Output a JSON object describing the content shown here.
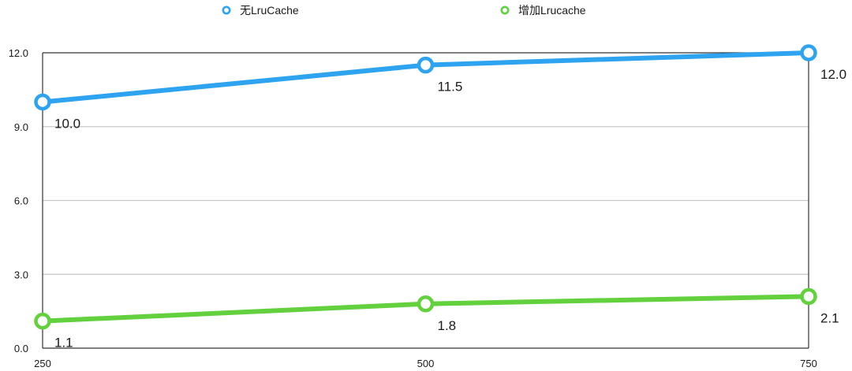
{
  "chart_data": {
    "type": "line",
    "x": [
      250,
      500,
      750
    ],
    "categories": [
      "250",
      "500",
      "750"
    ],
    "ylim": [
      0,
      12
    ],
    "yticks": [
      0,
      3,
      6,
      9,
      12
    ],
    "ytick_labels": [
      "0.0",
      "3.0",
      "6.0",
      "9.0",
      "12.0"
    ],
    "grid": true,
    "legend_position": "top",
    "series": [
      {
        "name": "无LruCache",
        "values": [
          10.0,
          11.5,
          12.0
        ],
        "labels": [
          "10.0",
          "11.5",
          "12.0"
        ],
        "color": "#2ea3ef"
      },
      {
        "name": "增加Lrucache",
        "values": [
          1.1,
          1.8,
          2.1
        ],
        "labels": [
          "1.1",
          "1.8",
          "2.1"
        ],
        "color": "#63d13e"
      }
    ]
  }
}
